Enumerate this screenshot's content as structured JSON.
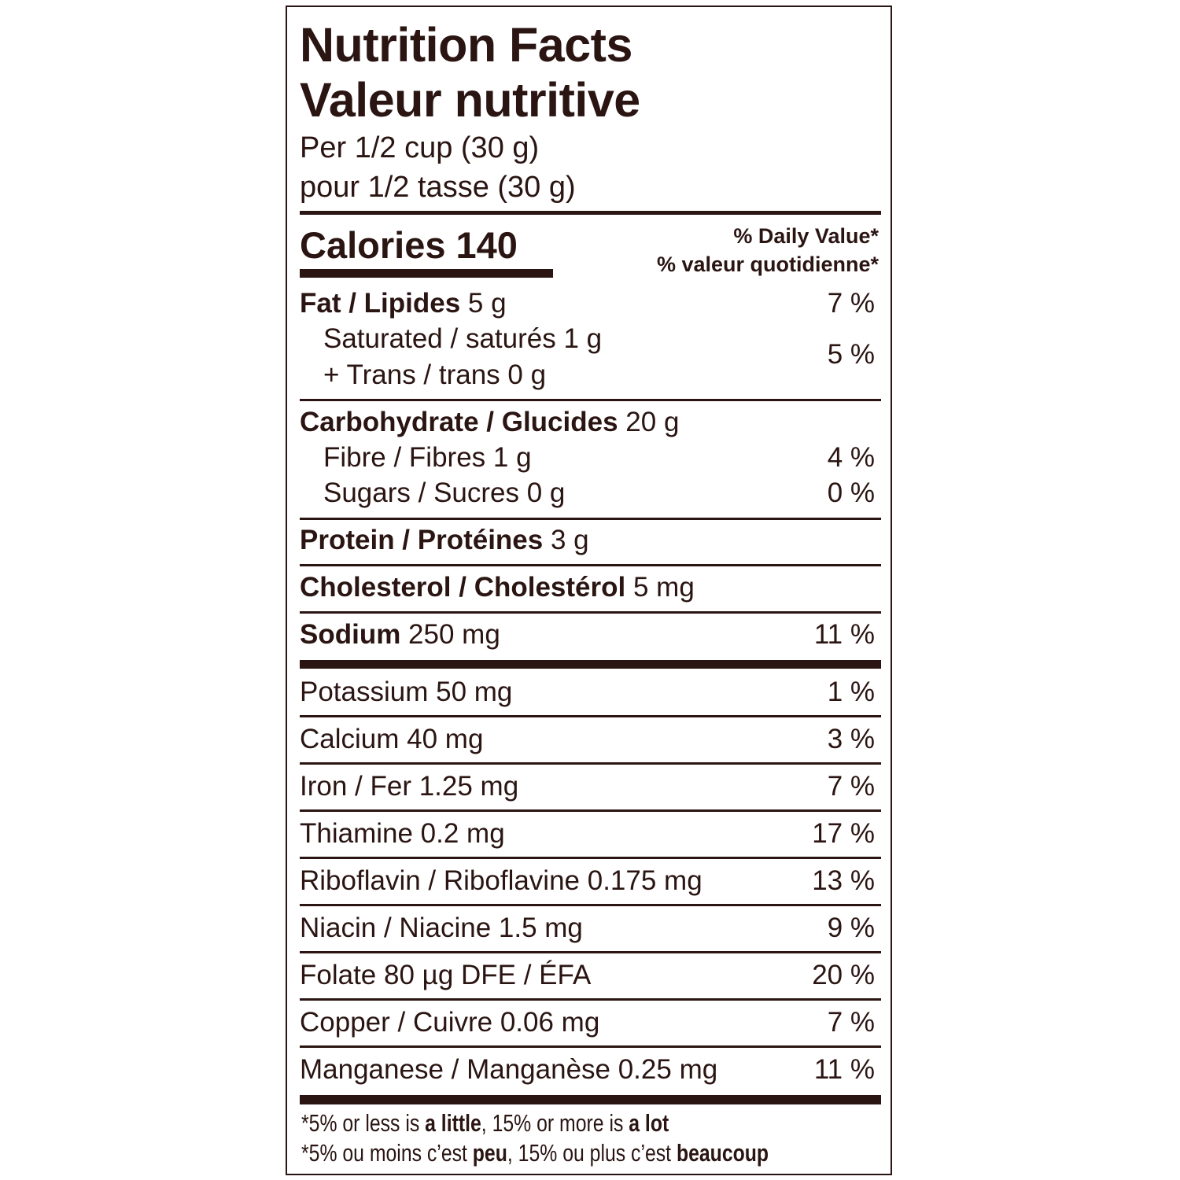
{
  "label": {
    "title_en": "Nutrition Facts",
    "title_fr": "Valeur nutritive",
    "serving_en": "Per 1/2 cup (30 g)",
    "serving_fr": "pour 1/2 tasse (30 g)",
    "calories": "Calories 140",
    "dv_en": "% Daily Value*",
    "dv_fr": "% valeur quotidienne*",
    "rows": [
      {
        "name": "Fat / Lipides",
        "amount": " 5 g",
        "dv": "7 %"
      },
      {
        "name": "Saturated / saturés 1 g",
        "amount": "",
        "dv": "5 %"
      },
      {
        "name": "+ Trans / trans 0 g",
        "amount": "",
        "dv": ""
      },
      {
        "name": "Carbohydrate / Glucides",
        "amount": " 20 g",
        "dv": ""
      },
      {
        "name": "Fibre / Fibres 1 g",
        "amount": "",
        "dv": "4 %"
      },
      {
        "name": "Sugars / Sucres 0 g",
        "amount": "",
        "dv": "0 %"
      },
      {
        "name": "Protein / Protéines",
        "amount": " 3 g",
        "dv": ""
      },
      {
        "name": "Cholesterol / Cholestérol",
        "amount": " 5 mg",
        "dv": ""
      },
      {
        "name": "Sodium",
        "amount": " 250 mg",
        "dv": "11 %"
      },
      {
        "name": "Potassium 50 mg",
        "amount": "",
        "dv": "1 %"
      },
      {
        "name": "Calcium 40 mg",
        "amount": "",
        "dv": "3 %"
      },
      {
        "name": "Iron / Fer 1.25 mg",
        "amount": "",
        "dv": "7 %"
      },
      {
        "name": "Thiamine 0.2 mg",
        "amount": "",
        "dv": "17 %"
      },
      {
        "name": "Riboflavin / Riboflavine 0.175 mg",
        "amount": "",
        "dv": "13 %"
      },
      {
        "name": "Niacin / Niacine 1.5 mg",
        "amount": "",
        "dv": "9 %"
      },
      {
        "name": "Folate 80 µg DFE / ÉFA",
        "amount": "",
        "dv": "20 %"
      },
      {
        "name": "Copper / Cuivre 0.06 mg",
        "amount": "",
        "dv": "7 %"
      },
      {
        "name": "Manganese / Manganèse 0.25 mg",
        "amount": "",
        "dv": "11 %"
      }
    ],
    "footnote_en": {
      "a": "*5% or less is ",
      "b": "a little",
      "c": ", 15% or more is ",
      "d": "a lot"
    },
    "footnote_fr": {
      "a": "*5% ou moins c’est ",
      "b": "peu",
      "c": ", 15% ou plus c’est ",
      "d": "beaucoup"
    }
  },
  "colors": {
    "ink": "#2a1512",
    "background": "#ffffff"
  }
}
